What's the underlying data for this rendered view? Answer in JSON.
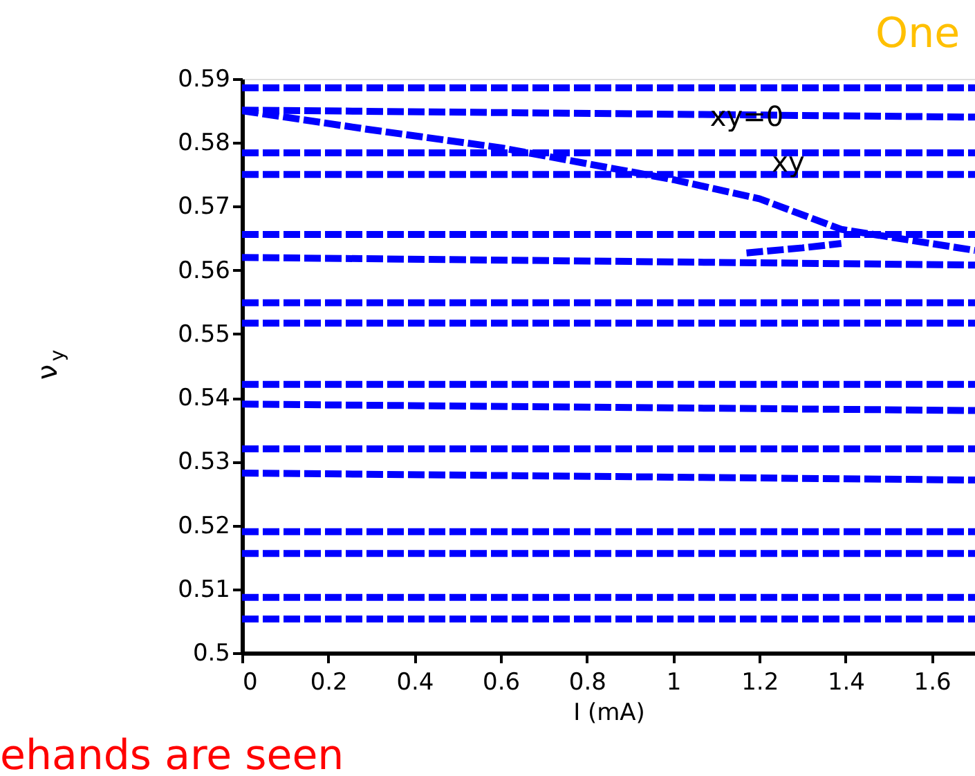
{
  "chart_data": {
    "type": "line",
    "xlabel": "I (mA)",
    "ylabel": "ν$_{y}$",
    "xlim": [
      0,
      1.7
    ],
    "ylim": [
      0.5,
      0.59
    ],
    "xticks": [
      0,
      0.2,
      0.4,
      0.6,
      0.8,
      1,
      1.2,
      1.4,
      1.6
    ],
    "yticks": [
      0.5,
      0.51,
      0.52,
      0.53,
      0.54,
      0.55,
      0.56,
      0.57,
      0.58,
      0.59
    ],
    "grid": false,
    "line_style": "dashed",
    "annotations": [
      "xy=0",
      "xy",
      "One",
      "ehands are seen"
    ],
    "series": [
      {
        "color": "#0000ff",
        "x": [
          0,
          1.7
        ],
        "values": [
          0.5886,
          0.5886
        ]
      },
      {
        "color": "#0000ff",
        "x": [
          0,
          1.7
        ],
        "values": [
          0.5851,
          0.584
        ]
      },
      {
        "color": "#0000ff",
        "x": [
          0,
          1.7
        ],
        "values": [
          0.5784,
          0.5784
        ]
      },
      {
        "color": "#0000ff",
        "x": [
          0,
          1.7
        ],
        "values": [
          0.575,
          0.575
        ]
      },
      {
        "color": "#0000ff",
        "x": [
          0,
          1.7
        ],
        "values": [
          0.5656,
          0.5656
        ]
      },
      {
        "color": "#0000ff",
        "x": [
          0,
          1.7
        ],
        "values": [
          0.562,
          0.5608
        ]
      },
      {
        "color": "#0000ff",
        "x": [
          0,
          1.7
        ],
        "values": [
          0.5549,
          0.5549
        ]
      },
      {
        "color": "#0000ff",
        "x": [
          0,
          1.7
        ],
        "values": [
          0.5517,
          0.5517
        ]
      },
      {
        "color": "#0000ff",
        "x": [
          0,
          1.7
        ],
        "values": [
          0.5421,
          0.5421
        ]
      },
      {
        "color": "#0000ff",
        "x": [
          0,
          1.7
        ],
        "values": [
          0.539,
          0.538
        ]
      },
      {
        "color": "#0000ff",
        "x": [
          0,
          1.7
        ],
        "values": [
          0.532,
          0.532
        ]
      },
      {
        "color": "#0000ff",
        "x": [
          0,
          1.7
        ],
        "values": [
          0.5282,
          0.5271
        ]
      },
      {
        "color": "#0000ff",
        "x": [
          0,
          1.7
        ],
        "values": [
          0.519,
          0.519
        ]
      },
      {
        "color": "#0000ff",
        "x": [
          0,
          1.7
        ],
        "values": [
          0.5156,
          0.5156
        ]
      },
      {
        "color": "#0000ff",
        "x": [
          0,
          1.7
        ],
        "values": [
          0.5087,
          0.5087
        ]
      },
      {
        "color": "#0000ff",
        "x": [
          0,
          1.7
        ],
        "values": [
          0.5053,
          0.5053
        ]
      },
      {
        "color": "#0000ff",
        "x": [
          0,
          0.3,
          0.6,
          1.0,
          1.2,
          1.39,
          1.7
        ],
        "values": [
          0.585,
          0.582,
          0.5792,
          0.5742,
          0.5712,
          0.5664,
          0.5631
        ]
      },
      {
        "color": "#0000ff",
        "x": [
          1.17,
          1.3,
          1.39
        ],
        "values": [
          0.5627,
          0.5635,
          0.5642
        ]
      }
    ]
  }
}
